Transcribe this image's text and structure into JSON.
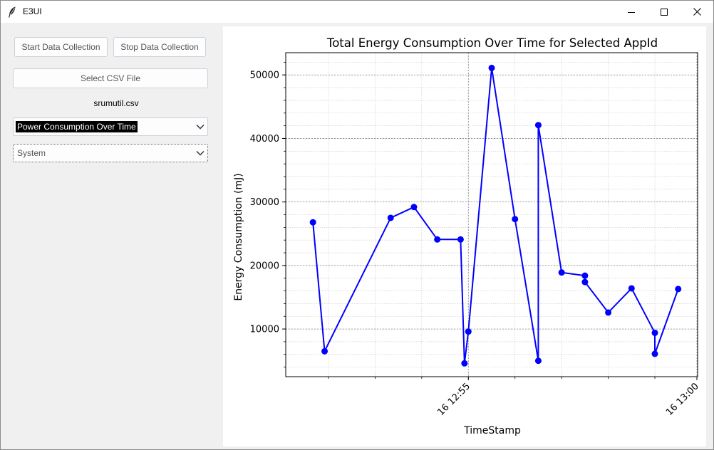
{
  "window": {
    "title": "E3UI",
    "icon": "feather-icon"
  },
  "titlebar_buttons": {
    "minimize_icon": "minimize-icon",
    "maximize_icon": "maximize-icon",
    "close_icon": "close-icon"
  },
  "sidebar": {
    "start_label": "Start Data Collection",
    "stop_label": "Stop Data Collection",
    "select_csv_label": "Select CSV File",
    "filename": "srumutil.csv",
    "plot_type_value": "Power Consumption Over Time",
    "app_value": "System"
  },
  "chart_data": {
    "type": "line",
    "title": "Total Energy Consumption Over Time for Selected AppId",
    "xlabel": "TimeStamp",
    "ylabel": "Energy Consumption (mJ)",
    "x": [
      "12:51:40",
      "12:51:55",
      "12:53:20",
      "12:53:50",
      "12:54:20",
      "12:54:50",
      "12:54:55",
      "12:55:00",
      "12:55:30",
      "12:56:00",
      "12:56:30",
      "12:56:30",
      "12:57:00",
      "12:57:30",
      "12:57:30",
      "12:58:00",
      "12:58:30",
      "12:59:00",
      "12:59:00",
      "12:59:30"
    ],
    "values": [
      26800,
      6500,
      27500,
      29200,
      24100,
      24100,
      4600,
      9600,
      51100,
      27300,
      5000,
      42100,
      18900,
      18400,
      17400,
      12600,
      16400,
      9400,
      6100,
      16300
    ],
    "ylim": [
      2500,
      53500
    ],
    "yticks": [
      10000,
      20000,
      30000,
      40000,
      50000
    ],
    "xticks": [
      "16 12:55",
      "16 13:00"
    ],
    "grid": true,
    "color": "#0000ff"
  }
}
